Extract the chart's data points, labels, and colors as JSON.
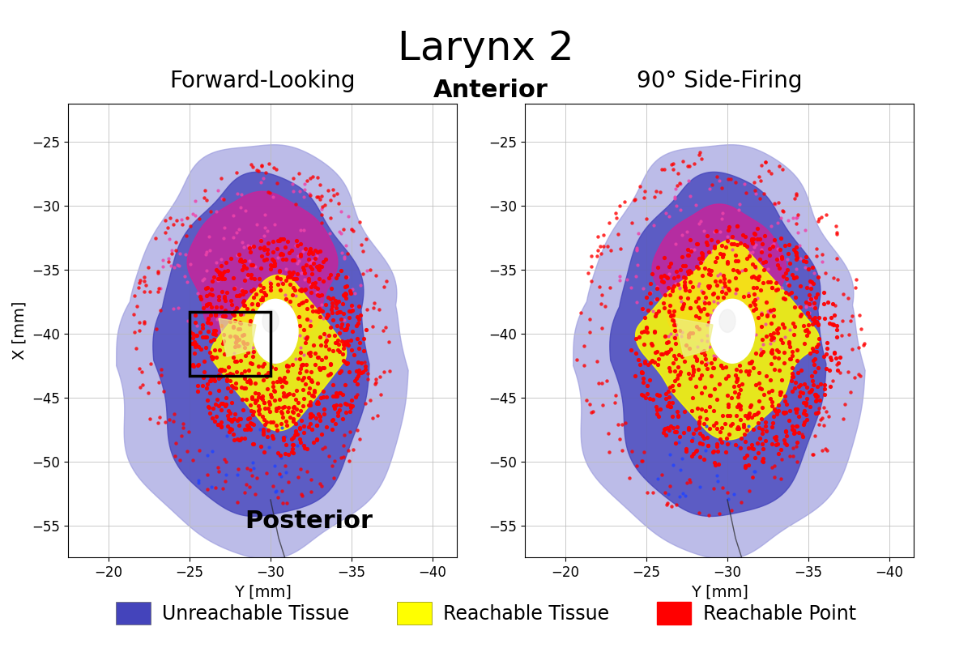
{
  "title": "Larynx 2",
  "left_subtitle": "Forward-Looking",
  "right_subtitle": "90° Side-Firing",
  "anterior_label": "Anterior",
  "posterior_label": "Posterior",
  "xlabel": "Y [mm]",
  "ylabel": "X [mm]",
  "xlim_left": [
    -17.5,
    -41.5
  ],
  "xlim_right": [
    -17.5,
    -41.5
  ],
  "ylim": [
    -57.5,
    -22.0
  ],
  "xticks": [
    -20,
    -25,
    -30,
    -35,
    -40
  ],
  "yticks": [
    -25,
    -30,
    -35,
    -40,
    -45,
    -50,
    -55
  ],
  "colors": {
    "unreachable_outer": "#9999DD",
    "unreachable_inner": "#4444BB",
    "unreachable_dark": "#3333AA",
    "reachable_tissue": "#DDDD00",
    "reachable_bright": "#FFFF00",
    "reachable_point_red": "#FF0000",
    "magenta": "#CC2299",
    "magenta_light": "#DD55BB",
    "white_glottis": "#FFFFFF",
    "background": "#FFFFFF",
    "grid": "#BBBBBB"
  },
  "title_fontsize": 36,
  "subtitle_fontsize": 20,
  "annot_fontsize": 22,
  "legend_fontsize": 17,
  "axis_fontsize": 14,
  "tick_fontsize": 12
}
